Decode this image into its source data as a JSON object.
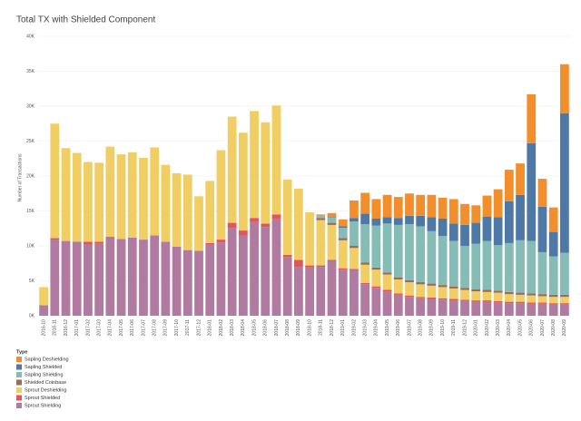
{
  "chart_data": {
    "type": "stacked_bar",
    "title": "Total TX with Shielded Component",
    "y_label": "Number of Transactions",
    "legend_title": "Type",
    "categories": [
      "2016-10",
      "2016-11",
      "2016-12",
      "2017-01",
      "2017-02",
      "2017-03",
      "2017-04",
      "2017-05",
      "2017-06",
      "2017-07",
      "2017-08",
      "2017-09",
      "2017-10",
      "2017-11",
      "2017-12",
      "2018-01",
      "2018-02",
      "2018-03",
      "2018-04",
      "2018-05",
      "2018-06",
      "2018-07",
      "2018-08",
      "2018-09",
      "2018-10",
      "2018-11",
      "2018-12",
      "2019-01",
      "2019-02",
      "2019-03",
      "2019-04",
      "2019-05",
      "2019-06",
      "2019-07",
      "2019-08",
      "2019-09",
      "2019-10",
      "2019-11",
      "2019-12",
      "2020-01",
      "2020-02",
      "2020-03",
      "2020-04",
      "2020-05",
      "2020-06",
      "2020-07",
      "2020-08",
      "2020-09"
    ],
    "ylim": [
      0,
      40000
    ],
    "yticks": [
      {
        "value": 0,
        "label": "0K"
      },
      {
        "value": 5000,
        "label": "5K"
      },
      {
        "value": 10000,
        "label": "10K"
      },
      {
        "value": 15000,
        "label": "15K"
      },
      {
        "value": 20000,
        "label": "20K"
      },
      {
        "value": 25000,
        "label": "25K"
      },
      {
        "value": 30000,
        "label": "30K"
      },
      {
        "value": 35000,
        "label": "35K"
      },
      {
        "value": 40000,
        "label": "40K"
      }
    ],
    "grid": true,
    "series": [
      {
        "name": "Sapling Deshielding",
        "color": "#f28e2b",
        "values": [
          0,
          0,
          0,
          0,
          0,
          0,
          0,
          0,
          0,
          0,
          0,
          0,
          0,
          0,
          0,
          0,
          0,
          0,
          0,
          0,
          0,
          0,
          0,
          0,
          0,
          200,
          500,
          1000,
          2500,
          3000,
          2800,
          3200,
          3000,
          3200,
          3000,
          3200,
          3000,
          3500,
          3000,
          2500,
          3000,
          4000,
          4500,
          4500,
          7000,
          4000,
          3500,
          7000
        ]
      },
      {
        "name": "Sapling Shielded",
        "color": "#4e79a7",
        "values": [
          0,
          0,
          0,
          0,
          0,
          0,
          0,
          0,
          0,
          0,
          0,
          0,
          0,
          0,
          0,
          0,
          0,
          0,
          0,
          0,
          0,
          0,
          0,
          0,
          0,
          0,
          100,
          200,
          500,
          1500,
          1000,
          900,
          1000,
          1200,
          1500,
          2000,
          2500,
          2500,
          3000,
          3000,
          3500,
          4000,
          6000,
          6500,
          14000,
          6500,
          3500,
          20000
        ]
      },
      {
        "name": "Sapling Shielding",
        "color": "#86bcb6",
        "values": [
          0,
          0,
          0,
          0,
          0,
          0,
          0,
          0,
          0,
          0,
          0,
          0,
          0,
          0,
          0,
          0,
          0,
          0,
          0,
          0,
          0,
          0,
          0,
          0,
          0,
          300,
          800,
          1500,
          3500,
          5500,
          6000,
          7000,
          7500,
          8000,
          8000,
          7500,
          7000,
          6500,
          6000,
          6500,
          7000,
          6500,
          7000,
          7500,
          7500,
          6000,
          5500,
          6000
        ]
      },
      {
        "name": "Shielded Coinbase",
        "color": "#9c6b5a",
        "values": [
          0,
          0,
          0,
          0,
          0,
          0,
          0,
          0,
          0,
          0,
          0,
          0,
          0,
          0,
          0,
          0,
          0,
          0,
          0,
          0,
          0,
          0,
          0,
          0,
          0,
          300,
          300,
          300,
          300,
          300,
          300,
          300,
          300,
          300,
          300,
          300,
          300,
          300,
          300,
          300,
          300,
          300,
          300,
          300,
          300,
          300,
          300,
          300
        ]
      },
      {
        "name": "Sprout Deshielding",
        "color": "#f1ce63",
        "values": [
          2600,
          16400,
          13300,
          12700,
          11400,
          11300,
          12900,
          12100,
          12200,
          11700,
          12600,
          11000,
          10500,
          10800,
          7800,
          8900,
          12800,
          15200,
          14000,
          15300,
          14500,
          15600,
          10800,
          10200,
          7600,
          6500,
          5000,
          4000,
          3000,
          2600,
          2400,
          2200,
          2000,
          1900,
          1800,
          1700,
          1600,
          1500,
          1400,
          1300,
          1200,
          1200,
          1100,
          1000,
          1000,
          900,
          900,
          900
        ]
      },
      {
        "name": "Sprout Shielded",
        "color": "#e15759",
        "values": [
          0,
          200,
          0,
          0,
          400,
          300,
          0,
          0,
          0,
          0,
          0,
          0,
          0,
          0,
          0,
          200,
          400,
          800,
          700,
          600,
          500,
          600,
          300,
          1000,
          300,
          200,
          200,
          200,
          200,
          200,
          200,
          200,
          200,
          200,
          200,
          200,
          200,
          200,
          200,
          200,
          200,
          200,
          200,
          200,
          200,
          200,
          200,
          200
        ]
      },
      {
        "name": "Sprout Shielding",
        "color": "#b07aa1",
        "values": [
          1500,
          10900,
          10700,
          10600,
          10200,
          10300,
          11300,
          11000,
          11200,
          10900,
          11500,
          10600,
          9900,
          9400,
          9300,
          10200,
          10500,
          12500,
          11500,
          13400,
          12700,
          13900,
          8400,
          7000,
          6900,
          7000,
          7800,
          6600,
          6500,
          4500,
          4000,
          3500,
          3000,
          2700,
          2500,
          2400,
          2300,
          2200,
          2100,
          2000,
          2000,
          1900,
          1800,
          1800,
          1700,
          1700,
          1600,
          1600
        ]
      }
    ]
  }
}
